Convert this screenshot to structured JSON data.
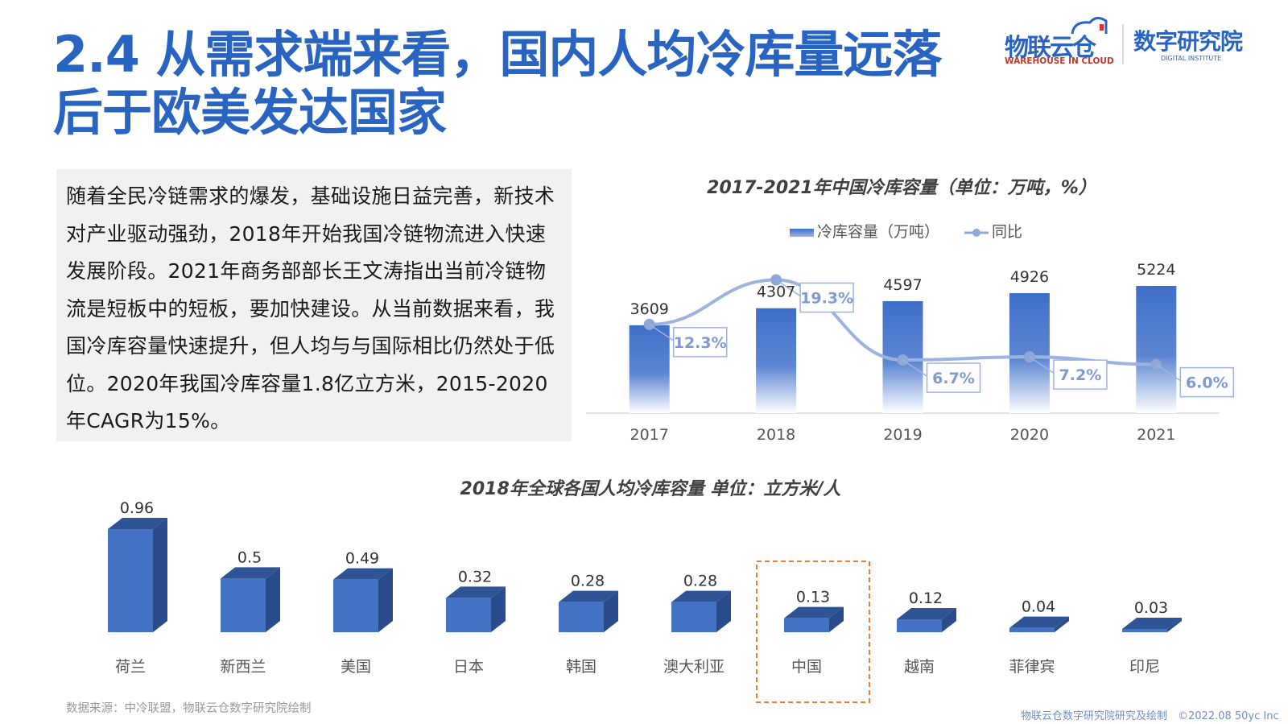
{
  "slide": {
    "title": "2.4 从需求端来看，国内人均冷库量远落后于欧美发达国家",
    "paragraph": "随着全民冷链需求的爆发，基础设施日益完善，新技术对产业驱动强劲，2018年开始我国冷链物流进入快速发展阶段。2021年商务部部长王文涛指出当前冷链物流是短板中的短板，要加快建设。从当前数据来看，我国冷库容量快速提升，但人均与与国际相比仍然处于低位。2020年我国冷库容量1.8亿立方米，2015-2020年CAGR为15%。",
    "source": "数据来源：中冷联盟，物联云仓数字研究院绘制",
    "footer": "物联云仓数字研究院研究及绘制　©2022.08 50yc Inc"
  },
  "logos": {
    "brand1_cn": "物联云仓",
    "brand1_en": "WAREHOUSE IN CLOUD",
    "brand2_cn": "数字研究院",
    "brand2_en": "DIGITAL INSTITUTE"
  },
  "colors": {
    "title": "#2a64c2",
    "bar": "#4472c4",
    "line": "#8fa8d8",
    "highlight": "#ed7d31"
  },
  "chart_data": [
    {
      "type": "bar",
      "title": "2017-2021年中国冷库容量（单位：万吨，%）",
      "categories": [
        "2017",
        "2018",
        "2019",
        "2020",
        "2021"
      ],
      "series": [
        {
          "name": "冷库容量（万吨）",
          "type": "bar",
          "values": [
            3609,
            4307,
            4597,
            4926,
            5224
          ]
        },
        {
          "name": "同比",
          "type": "line",
          "values": [
            12.3,
            19.3,
            6.7,
            7.2,
            6.0
          ],
          "labels": [
            "12.3%",
            "19.3%",
            "6.7%",
            "7.2%",
            "6.0%"
          ]
        }
      ],
      "legend_position": "top"
    },
    {
      "type": "bar",
      "title": "2018年全球各国人均冷库容量 单位：立方米/人",
      "categories": [
        "荷兰",
        "新西兰",
        "美国",
        "日本",
        "韩国",
        "澳大利亚",
        "中国",
        "越南",
        "菲律宾",
        "印尼"
      ],
      "values": [
        0.96,
        0.5,
        0.49,
        0.32,
        0.28,
        0.28,
        0.13,
        0.12,
        0.04,
        0.03
      ],
      "value_labels": [
        "0.96",
        "0.5",
        "0.49",
        "0.32",
        "0.28",
        "0.28",
        "0.13",
        "0.12",
        "0.04",
        "0.03"
      ],
      "highlight": "中国"
    }
  ]
}
